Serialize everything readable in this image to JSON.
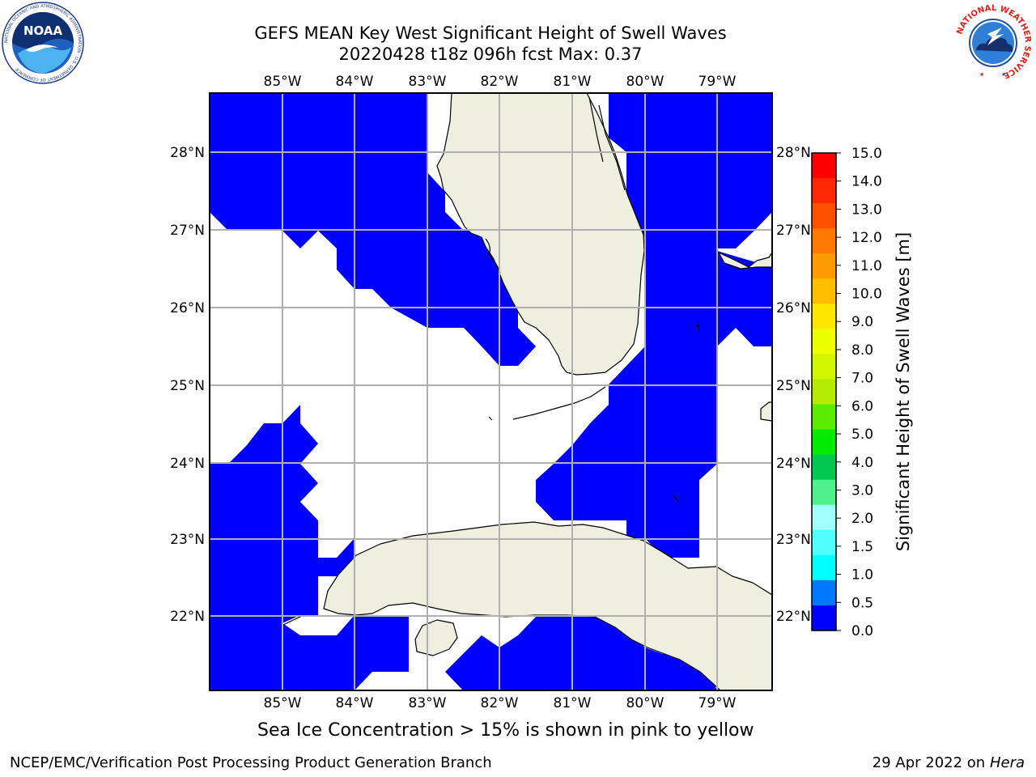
{
  "title": {
    "line1": "GEFS MEAN Key West Significant Height of Swell Waves",
    "line2": "20220428 t18z 096h fcst   Max: 0.37"
  },
  "map": {
    "lon_labels": [
      "85°W",
      "84°W",
      "83°W",
      "82°W",
      "81°W",
      "80°W",
      "79°W"
    ],
    "lat_labels": [
      "28°N",
      "27°N",
      "26°N",
      "25°N",
      "24°N",
      "23°N",
      "22°N"
    ],
    "colors": {
      "water_field": "#0000ff",
      "land": "#efefdf",
      "gridline": "#b0b0b0",
      "coast": "#000000"
    },
    "field_value_max_m": 0.37
  },
  "colorbar": {
    "label": "Significant Height of Swell Waves [m]",
    "ticks": [
      "15.0",
      "14.0",
      "13.0",
      "12.0",
      "11.0",
      "10.0",
      "9.0",
      "8.0",
      "7.0",
      "6.0",
      "5.0",
      "4.0",
      "3.0",
      "2.0",
      "1.5",
      "1.0",
      "0.5",
      "0.0"
    ],
    "colors": [
      "#ff0000",
      "#ff2800",
      "#ff5000",
      "#ff7800",
      "#ff9b00",
      "#ffbe00",
      "#ffe600",
      "#f0ff00",
      "#d2f500",
      "#b4eb00",
      "#5aeb00",
      "#00eb00",
      "#00c850",
      "#50f08c",
      "#a0ffff",
      "#50ffff",
      "#00ffff",
      "#0078ff",
      "#0000ff"
    ]
  },
  "caption": "Sea Ice Concentration > 15% is shown in pink to yellow",
  "footer": {
    "left": "NCEP/EMC/Verification Post Processing Product Generation Branch",
    "right_prefix": "29 Apr 2022 on ",
    "right_host": "Hera"
  },
  "logos": {
    "noaa_text": "NOAA",
    "noaa_ring": "NATIONAL OCEANIC AND ATMOSPHERIC ADMINISTRATION · U.S. DEPARTMENT OF COMMERCE",
    "nws_ring": "NATIONAL WEATHER SERVICE"
  }
}
